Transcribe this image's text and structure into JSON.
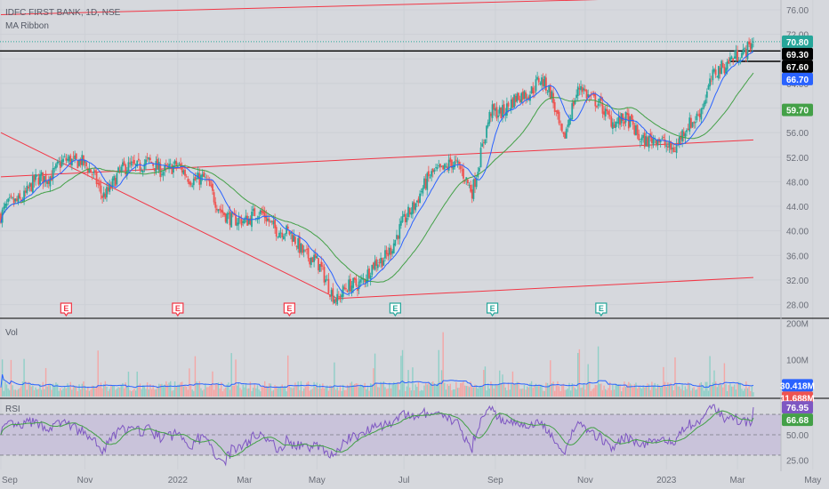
{
  "header": {
    "symbol_line": "IDFC FIRST BANK, 1D, NSE",
    "indicator": "MA Ribbon"
  },
  "panes": {
    "volume_label": "Vol",
    "rsi_label": "RSI"
  },
  "colors": {
    "bg": "#d6d8dd",
    "up": "#26a69a",
    "down": "#ef5350",
    "ma_fast": "#2962ff",
    "ma_slow": "#43a047",
    "rsi": "#7e57c2",
    "trend": "#f23645",
    "hline": "#000000",
    "grid": "#cdd0d6"
  },
  "price_axis": {
    "ticks": [
      "76.00",
      "72.00",
      "68.00",
      "64.00",
      "60.00",
      "56.00",
      "52.00",
      "48.00",
      "44.00",
      "40.00",
      "36.00",
      "32.00",
      "28.00"
    ],
    "tick_values": [
      76,
      72,
      68,
      64,
      60,
      56,
      52,
      48,
      44,
      40,
      36,
      32,
      28
    ],
    "range": [
      26.2,
      77.3
    ]
  },
  "volume_axis": {
    "ticks": [
      "200M",
      "100M"
    ],
    "tick_values": [
      200,
      100
    ],
    "range": [
      0,
      208
    ]
  },
  "rsi_axis": {
    "ticks": [
      "25.00",
      "50.00"
    ],
    "tick_values": [
      25,
      50
    ],
    "range": [
      16,
      84
    ],
    "band": [
      30,
      70
    ]
  },
  "x_axis": {
    "labels": [
      "Sep",
      "Nov",
      "2022",
      "Mar",
      "May",
      "Jul",
      "Sep",
      "Nov",
      "2023",
      "Mar",
      "May"
    ],
    "label_index": [
      0,
      58,
      122,
      168,
      218,
      278,
      341,
      403,
      459,
      508,
      560
    ]
  },
  "badges": {
    "price": [
      {
        "text": "70.80",
        "value": 70.8,
        "bg": "#26a69a",
        "fg": "#ffffff",
        "name": "last-price-badge"
      },
      {
        "text": "69.30",
        "value": 69.3,
        "bg": "#000000",
        "fg": "#ffffff",
        "name": "hline-upper-badge"
      },
      {
        "text": "67.60",
        "value": 67.6,
        "bg": "#000000",
        "fg": "#ffffff",
        "name": "hline-lower-badge"
      },
      {
        "text": "66.70",
        "value": 66.7,
        "bg": "#2962ff",
        "fg": "#ffffff",
        "name": "ma-fast-badge"
      },
      {
        "text": "59.70",
        "value": 59.7,
        "bg": "#43a047",
        "fg": "#ffffff",
        "name": "ma-slow-badge"
      }
    ],
    "volume": [
      {
        "text": "30.418M",
        "value": 30.418,
        "bg": "#2962ff",
        "fg": "#ffffff",
        "name": "volume-ma-badge"
      },
      {
        "text": "11.688M",
        "value": 11.688,
        "bg": "#ef5350",
        "fg": "#ffffff",
        "name": "volume-last-badge"
      }
    ],
    "rsi": [
      {
        "text": "76.95",
        "value": 76.95,
        "bg": "#7e57c2",
        "fg": "#ffffff",
        "name": "rsi-value-badge"
      },
      {
        "text": "66.68",
        "value": 66.68,
        "bg": "#43a047",
        "fg": "#ffffff",
        "name": "rsi-ma-badge"
      }
    ]
  },
  "earnings": [
    {
      "text": "E",
      "index": 45,
      "type": "negative"
    },
    {
      "text": "E",
      "index": 122,
      "type": "negative"
    },
    {
      "text": "E",
      "index": 199,
      "type": "negative"
    },
    {
      "text": "E",
      "index": 272,
      "type": "positive"
    },
    {
      "text": "E",
      "index": 339,
      "type": "positive"
    },
    {
      "text": "E",
      "index": 414,
      "type": "positive"
    }
  ],
  "chart_data": {
    "type": "candlestick",
    "title": "IDFC FIRST BANK, 1D, NSE",
    "bars": 520,
    "price_anchors": [
      [
        0,
        42.5
      ],
      [
        20,
        47
      ],
      [
        40,
        50.5
      ],
      [
        55,
        52
      ],
      [
        70,
        46
      ],
      [
        90,
        51
      ],
      [
        122,
        50
      ],
      [
        140,
        48
      ],
      [
        160,
        41
      ],
      [
        175,
        43
      ],
      [
        195,
        40
      ],
      [
        215,
        35.5
      ],
      [
        232,
        29
      ],
      [
        245,
        31.5
      ],
      [
        262,
        35
      ],
      [
        278,
        41
      ],
      [
        290,
        47
      ],
      [
        310,
        51.5
      ],
      [
        325,
        47
      ],
      [
        338,
        59
      ],
      [
        355,
        61
      ],
      [
        371,
        64.5
      ],
      [
        380,
        62
      ],
      [
        388,
        55
      ],
      [
        400,
        64
      ],
      [
        418,
        58.5
      ],
      [
        430,
        58
      ],
      [
        440,
        55.5
      ],
      [
        455,
        54.3
      ],
      [
        465,
        53.8
      ],
      [
        478,
        58
      ],
      [
        492,
        65
      ],
      [
        503,
        68.5
      ],
      [
        512,
        68.2
      ],
      [
        519,
        71.2
      ]
    ],
    "ma_fast_label": "66.70",
    "ma_slow_label": "59.70",
    "support_line": [
      28.8,
      32.2
    ],
    "trend_lines": [
      {
        "name": "channel-top",
        "from": [
          0,
          75.2
        ],
        "to": [
          519,
          78.3
        ]
      },
      {
        "name": "rising-support",
        "from": [
          0,
          48.8
        ],
        "to": [
          519,
          54.8
        ]
      },
      {
        "name": "falling-line",
        "from": [
          0,
          56
        ],
        "to": [
          232,
          29
        ]
      },
      {
        "name": "base-line",
        "from": [
          232,
          29
        ],
        "to": [
          519,
          32.4
        ]
      }
    ],
    "horizontal_lines": [
      69.3,
      67.6
    ],
    "last_close": 70.8,
    "volume_avg": 30.418,
    "volume_last": 11.688,
    "rsi_last": 76.95,
    "rsi_ma_last": 66.68
  }
}
